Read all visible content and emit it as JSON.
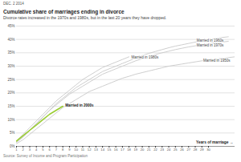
{
  "chart_data": {
    "type": "line",
    "header": "DEC. 2 2014",
    "title": "Cumulative share of marriages ending in divorce",
    "subtitle": "Divorce rates increased in the 1970s and 1980s, but in the last 20 years they have dropped.",
    "source": "Source: Survey of Income and Program Participation",
    "xlabel": "Years of marriage →",
    "x": [
      1,
      2,
      3,
      4,
      5,
      6,
      7,
      8,
      9,
      10,
      11,
      12,
      13,
      14,
      15,
      16,
      17,
      18,
      19,
      20,
      21,
      22,
      23,
      24,
      25,
      26,
      27,
      28,
      29,
      30,
      31,
      32,
      33,
      34
    ],
    "xlim": [
      1,
      34
    ],
    "xticks": [
      1,
      2,
      3,
      4,
      5,
      6,
      7,
      8,
      9,
      10,
      11,
      12,
      13,
      14,
      15,
      16,
      17,
      18,
      19,
      20,
      21,
      22,
      23,
      24,
      25,
      26,
      27,
      28,
      29,
      30
    ],
    "ylim": [
      0,
      45
    ],
    "yticks": [
      {
        "value": 0,
        "label": "0%"
      },
      {
        "value": 5,
        "label": "5%"
      },
      {
        "value": 10,
        "label": "10%"
      },
      {
        "value": 15,
        "label": "15%"
      },
      {
        "value": 20,
        "label": "20%"
      },
      {
        "value": 25,
        "label": "25%"
      },
      {
        "value": 30,
        "label": "30%"
      },
      {
        "value": 35,
        "label": "35%"
      },
      {
        "value": 40,
        "label": "40%"
      },
      {
        "value": 45,
        "label": "45%"
      }
    ],
    "grid": true,
    "series": [
      {
        "name": "Married in 1960s",
        "color": "#c8c8c8",
        "values": [
          1.5,
          3.5,
          6,
          8.5,
          11,
          13.5,
          16,
          18,
          20,
          22,
          23.5,
          25,
          26.5,
          28,
          29,
          30,
          31,
          32,
          33,
          34,
          34.8,
          35.5,
          36.2,
          36.9,
          37.5,
          38,
          38.5,
          39,
          39.5,
          40,
          40.3,
          40.7,
          41,
          null
        ]
      },
      {
        "name": "Married in 1970s",
        "color": "#c8c8c8",
        "values": [
          1.5,
          3.5,
          6,
          8.5,
          11,
          13.5,
          15.5,
          17.5,
          19.5,
          21,
          22.5,
          24,
          25.5,
          27,
          28,
          29,
          30,
          31,
          32,
          32.8,
          33.6,
          34.4,
          35,
          35.6,
          36.2,
          36.7,
          37.2,
          37.6,
          38,
          38.4,
          38.7,
          39,
          39.3,
          null
        ]
      },
      {
        "name": "Married in 1950s",
        "color": "#c8c8c8",
        "values": [
          1,
          2.5,
          4.5,
          6.5,
          8.5,
          10.5,
          12.5,
          14.5,
          16,
          17.5,
          19,
          20.5,
          21.5,
          22.5,
          23.5,
          24.5,
          25.5,
          26.2,
          27,
          27.6,
          28.2,
          28.8,
          29.4,
          30,
          30.4,
          30.8,
          31.2,
          31.6,
          32,
          32.3,
          32.6,
          32.9,
          33.2,
          33.5
        ]
      },
      {
        "name": "Married in 1980s",
        "color": "#c8c8c8",
        "values": [
          2,
          4.5,
          7,
          9.5,
          12,
          14.5,
          17,
          19,
          21,
          23,
          25,
          26.5,
          28,
          29.5,
          30.5,
          31.5,
          32.5,
          33.5,
          null,
          null,
          null,
          null,
          null,
          null,
          null,
          null,
          null,
          null,
          null,
          null,
          null,
          null,
          null,
          null
        ]
      },
      {
        "name": "Married in 2000s",
        "color": "#9acd32",
        "values": [
          2,
          4,
          6,
          8,
          10,
          12,
          13.5,
          15,
          null,
          null,
          null,
          null,
          null,
          null,
          null,
          null,
          null,
          null,
          null,
          null,
          null,
          null,
          null,
          null,
          null,
          null,
          null,
          null,
          null,
          null,
          null,
          null,
          null,
          null
        ]
      }
    ]
  }
}
